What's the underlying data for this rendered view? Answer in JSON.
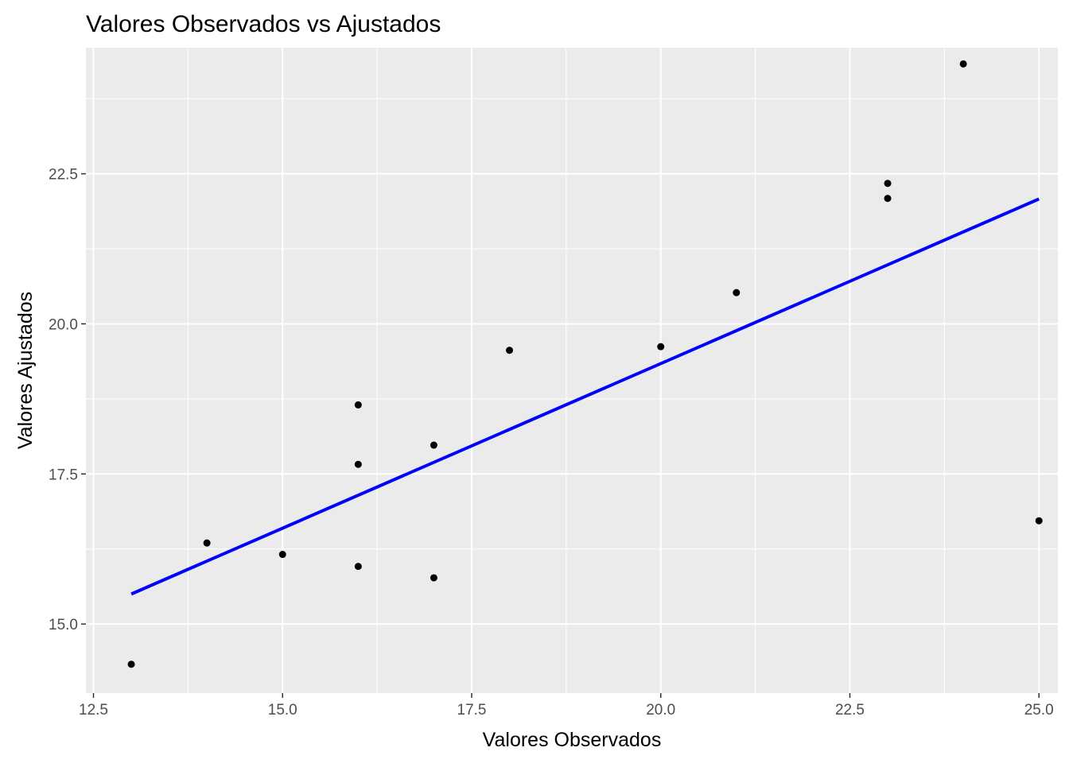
{
  "chart_data": {
    "type": "scatter",
    "title": "Valores Observados vs Ajustados",
    "xlabel": "Valores Observados",
    "ylabel": "Valores Ajustados",
    "xlim": [
      12.4,
      25.25
    ],
    "ylim": [
      13.85,
      24.6
    ],
    "x_ticks": [
      12.5,
      15.0,
      17.5,
      20.0,
      22.5,
      25.0
    ],
    "x_tick_labels": [
      "12.5",
      "15.0",
      "17.5",
      "20.0",
      "22.5",
      "25.0"
    ],
    "y_ticks": [
      15.0,
      17.5,
      20.0,
      22.5
    ],
    "y_tick_labels": [
      "15.0",
      "17.5",
      "20.0",
      "22.5"
    ],
    "grid": true,
    "points": [
      {
        "x": 13,
        "y": 14.33
      },
      {
        "x": 14,
        "y": 16.35
      },
      {
        "x": 15,
        "y": 16.16
      },
      {
        "x": 16,
        "y": 18.65
      },
      {
        "x": 16,
        "y": 17.66
      },
      {
        "x": 16,
        "y": 15.96
      },
      {
        "x": 17,
        "y": 17.98
      },
      {
        "x": 17,
        "y": 15.77
      },
      {
        "x": 18,
        "y": 19.56
      },
      {
        "x": 20,
        "y": 19.62
      },
      {
        "x": 21,
        "y": 20.52
      },
      {
        "x": 23,
        "y": 22.34
      },
      {
        "x": 23,
        "y": 22.09
      },
      {
        "x": 24,
        "y": 24.33
      },
      {
        "x": 25,
        "y": 16.72
      }
    ],
    "fit_line": {
      "x": [
        13,
        25
      ],
      "y": [
        15.5,
        22.08
      ]
    },
    "colors": {
      "panel_background": "#ebebeb",
      "grid_major": "#ffffff",
      "point": "#000000",
      "fit_line": "#0000ff",
      "tick_label": "#4d4d4d",
      "tick_mark": "#333333"
    }
  }
}
